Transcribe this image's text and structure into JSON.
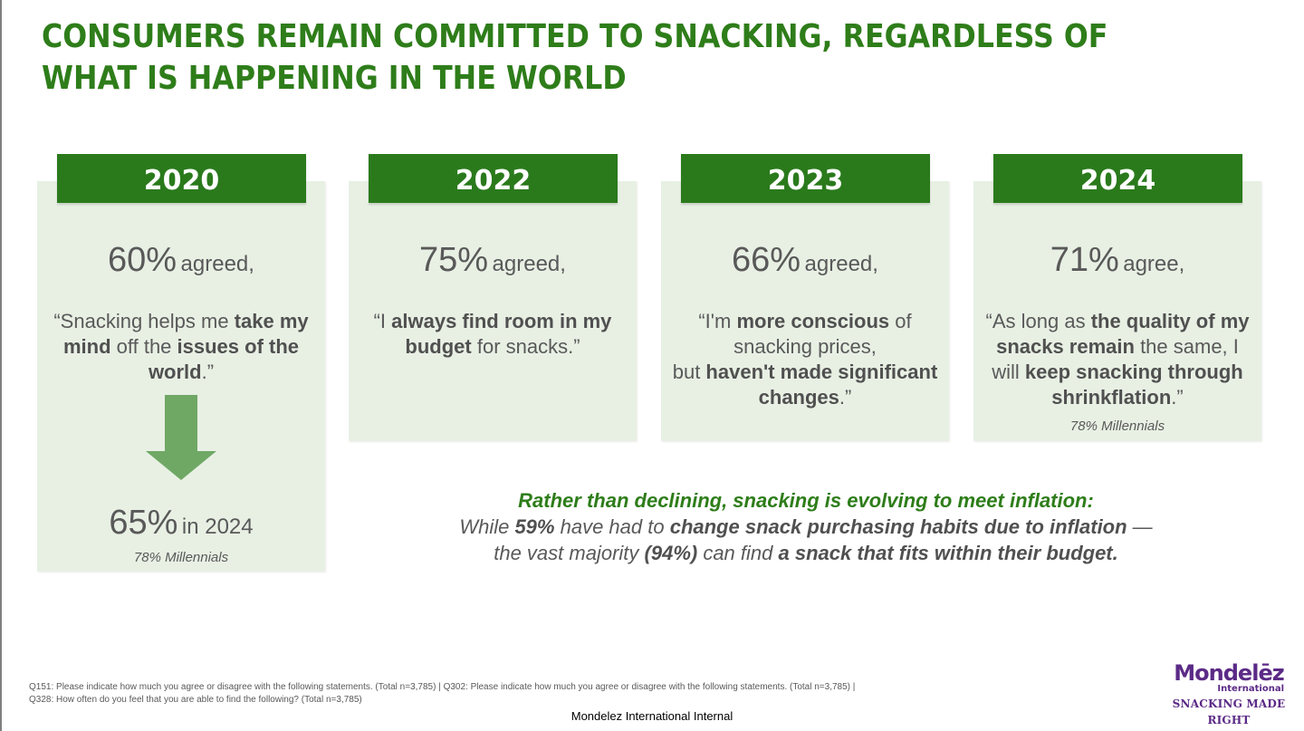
{
  "title": "CONSUMERS REMAIN COMMITTED TO SNACKING, REGARDLESS OF WHAT IS HAPPENING IN THE WORLD",
  "cards": [
    {
      "year": "2020",
      "pct": "60%",
      "verb": "agreed,",
      "quote_html": "“Snacking helps me <b>take my mind</b> off the <b>issues of the world</b>.”",
      "followup_pct": "65%",
      "followup_label": "in 2024",
      "note": "78% Millennials"
    },
    {
      "year": "2022",
      "pct": "75%",
      "verb": "agreed,",
      "quote_html": "“I <b>always find room in my budget</b> for snacks.”"
    },
    {
      "year": "2023",
      "pct": "66%",
      "verb": "agreed,",
      "quote_html": "“I'm <b>more conscious</b> of snacking prices,<br>but <b>haven't made significant changes</b>.”"
    },
    {
      "year": "2024",
      "pct": "71%",
      "verb": "agree,",
      "quote_html": "“As long as <b>the quality of my snacks remain</b> the same, I will <b>keep snacking through shrinkflation</b>.”",
      "note": "78% Millennials"
    }
  ],
  "callout": {
    "headline": "Rather than declining, snacking is evolving to meet inflation:",
    "body_html": "While <b>59%</b> have had to <b>change snack purchasing habits due to inflation</b> —<br>the vast majority <b>(94%)</b> can find <b>a snack that fits within their budget.</b>"
  },
  "footnote_line1": "Q151: Please indicate how much you agree or disagree with the following statements. (Total n=3,785) | Q302: Please indicate how much you agree or disagree with the following statements. (Total n=3,785) |",
  "footnote_line2": "Q328: How often do you feel that you are able to find the following? (Total n=3,785)",
  "classification": "Mondelez International Internal",
  "logo": {
    "name": "Mondelēz",
    "sub": "International",
    "tagline": "SNACKING MADE RIGHT"
  },
  "colors": {
    "brand_green": "#2a7a1c",
    "card_bg": "#e8f0e4",
    "arrow_green": "#6fa865",
    "logo_purple": "#5b2a86"
  }
}
